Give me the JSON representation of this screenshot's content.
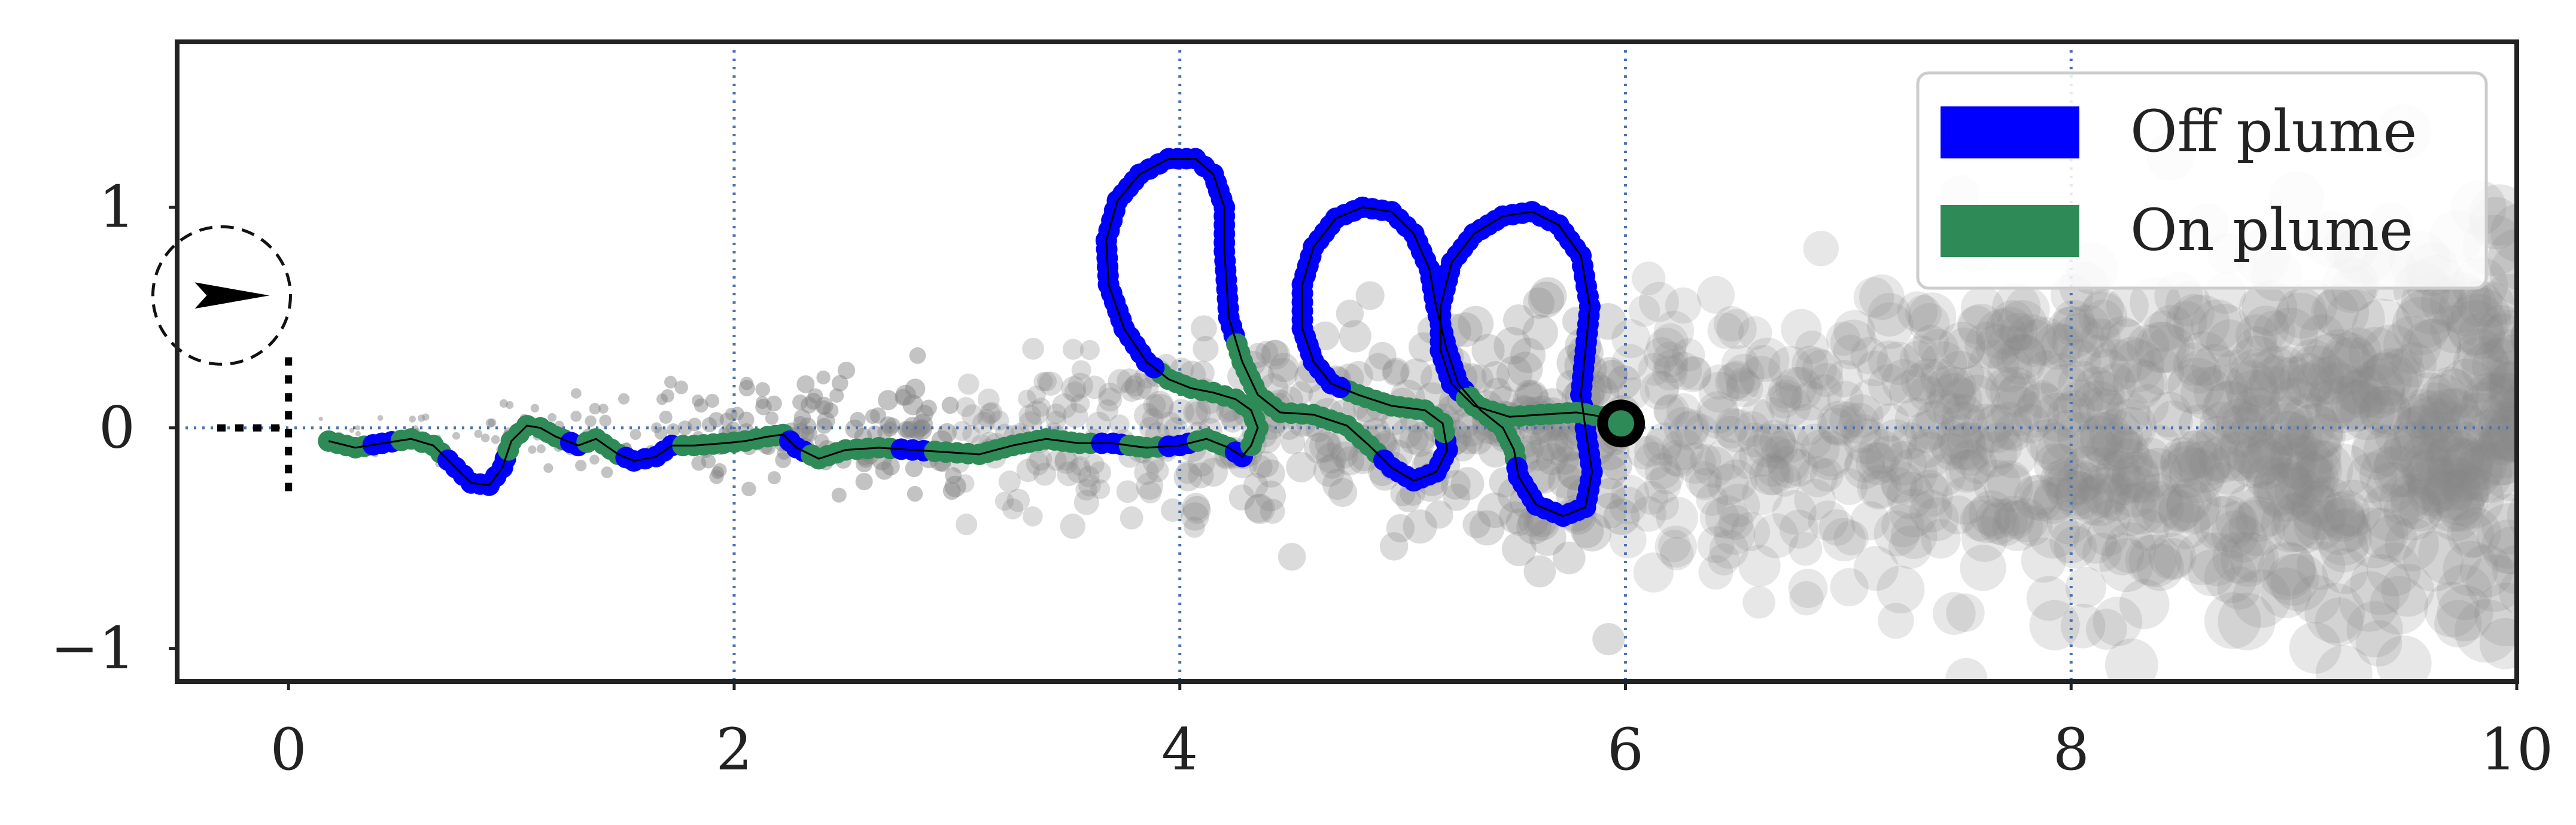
{
  "chart_data": {
    "type": "scatter",
    "title": "",
    "xlabel": "",
    "ylabel": "",
    "xlim": [
      -0.5,
      10.0
    ],
    "ylim": [
      -1.15,
      1.75
    ],
    "x_ticks": [
      0,
      2,
      4,
      6,
      8,
      10
    ],
    "x_tick_labels": [
      "0",
      "2",
      "4",
      "6",
      "8",
      "10"
    ],
    "y_ticks": [
      -1,
      0,
      1
    ],
    "y_tick_labels": [
      "−1",
      "0",
      "1"
    ],
    "grid": {
      "x": [
        2,
        4,
        6,
        8
      ],
      "y": [
        0
      ],
      "style": "dotted"
    },
    "legend": {
      "position": "top-right",
      "entries": [
        {
          "label": "Off plume",
          "color": "#0000ff"
        },
        {
          "label": "On plume",
          "color": "#2e8b57"
        }
      ]
    },
    "colors": {
      "off_plume": "#0000ff",
      "on_plume": "#2e8b57",
      "plume_puffs": "#888888",
      "grid": "#4c72b0",
      "frame": "#222222"
    },
    "agent_indicator": {
      "center": [
        -0.3,
        0.6
      ],
      "heading": "east",
      "scale_bar": "dotted L-shaped marker at x = 0"
    },
    "trajectory_end": [
      5.98,
      0.02
    ],
    "trajectory": [
      [
        0.18,
        -0.06,
        "on"
      ],
      [
        0.3,
        -0.09,
        "on"
      ],
      [
        0.42,
        -0.07,
        "off"
      ],
      [
        0.55,
        -0.05,
        "on"
      ],
      [
        0.65,
        -0.08,
        "on"
      ],
      [
        0.75,
        -0.18,
        "off"
      ],
      [
        0.82,
        -0.25,
        "off"
      ],
      [
        0.9,
        -0.26,
        "off"
      ],
      [
        0.96,
        -0.18,
        "off"
      ],
      [
        1.0,
        -0.06,
        "on"
      ],
      [
        1.07,
        0.01,
        "on"
      ],
      [
        1.13,
        0.0,
        "on"
      ],
      [
        1.2,
        -0.04,
        "on"
      ],
      [
        1.3,
        -0.08,
        "off"
      ],
      [
        1.38,
        -0.05,
        "on"
      ],
      [
        1.48,
        -0.12,
        "on"
      ],
      [
        1.55,
        -0.15,
        "off"
      ],
      [
        1.65,
        -0.13,
        "off"
      ],
      [
        1.72,
        -0.08,
        "off"
      ],
      [
        1.82,
        -0.08,
        "on"
      ],
      [
        1.95,
        -0.07,
        "on"
      ],
      [
        2.05,
        -0.06,
        "on"
      ],
      [
        2.15,
        -0.04,
        "on"
      ],
      [
        2.22,
        -0.03,
        "on"
      ],
      [
        2.28,
        -0.09,
        "off"
      ],
      [
        2.38,
        -0.14,
        "on"
      ],
      [
        2.5,
        -0.1,
        "on"
      ],
      [
        2.65,
        -0.09,
        "on"
      ],
      [
        2.8,
        -0.1,
        "off"
      ],
      [
        2.95,
        -0.11,
        "on"
      ],
      [
        3.1,
        -0.12,
        "on"
      ],
      [
        3.25,
        -0.08,
        "on"
      ],
      [
        3.4,
        -0.05,
        "on"
      ],
      [
        3.55,
        -0.07,
        "on"
      ],
      [
        3.7,
        -0.07,
        "off"
      ],
      [
        3.85,
        -0.09,
        "on"
      ],
      [
        4.0,
        -0.08,
        "off"
      ],
      [
        4.12,
        -0.05,
        "on"
      ],
      [
        4.22,
        -0.09,
        "on"
      ],
      [
        4.28,
        -0.13,
        "off"
      ],
      [
        4.32,
        -0.08,
        "on"
      ],
      [
        4.35,
        0.0,
        "on"
      ],
      [
        4.32,
        0.08,
        "on"
      ],
      [
        4.25,
        0.13,
        "on"
      ],
      [
        4.15,
        0.16,
        "on"
      ],
      [
        4.05,
        0.18,
        "on"
      ],
      [
        3.95,
        0.22,
        "on"
      ],
      [
        3.85,
        0.3,
        "off"
      ],
      [
        3.75,
        0.45,
        "off"
      ],
      [
        3.68,
        0.65,
        "off"
      ],
      [
        3.67,
        0.85,
        "off"
      ],
      [
        3.72,
        1.03,
        "off"
      ],
      [
        3.82,
        1.15,
        "off"
      ],
      [
        3.95,
        1.22,
        "off"
      ],
      [
        4.07,
        1.22,
        "off"
      ],
      [
        4.15,
        1.15,
        "off"
      ],
      [
        4.2,
        1.0,
        "off"
      ],
      [
        4.2,
        0.8,
        "off"
      ],
      [
        4.22,
        0.5,
        "off"
      ],
      [
        4.28,
        0.3,
        "on"
      ],
      [
        4.35,
        0.15,
        "on"
      ],
      [
        4.45,
        0.07,
        "on"
      ],
      [
        4.6,
        0.06,
        "on"
      ],
      [
        4.75,
        0.01,
        "on"
      ],
      [
        4.85,
        -0.08,
        "on"
      ],
      [
        4.95,
        -0.18,
        "off"
      ],
      [
        5.05,
        -0.24,
        "off"
      ],
      [
        5.15,
        -0.2,
        "off"
      ],
      [
        5.2,
        -0.1,
        "off"
      ],
      [
        5.18,
        0.02,
        "on"
      ],
      [
        5.1,
        0.08,
        "on"
      ],
      [
        4.95,
        0.1,
        "on"
      ],
      [
        4.8,
        0.15,
        "on"
      ],
      [
        4.68,
        0.2,
        "off"
      ],
      [
        4.6,
        0.3,
        "off"
      ],
      [
        4.55,
        0.45,
        "off"
      ],
      [
        4.55,
        0.65,
        "off"
      ],
      [
        4.6,
        0.82,
        "off"
      ],
      [
        4.7,
        0.95,
        "off"
      ],
      [
        4.82,
        1.0,
        "off"
      ],
      [
        4.95,
        0.98,
        "off"
      ],
      [
        5.05,
        0.88,
        "off"
      ],
      [
        5.12,
        0.72,
        "off"
      ],
      [
        5.15,
        0.55,
        "off"
      ],
      [
        5.2,
        0.35,
        "off"
      ],
      [
        5.25,
        0.2,
        "off"
      ],
      [
        5.35,
        0.08,
        "on"
      ],
      [
        5.45,
        0.0,
        "on"
      ],
      [
        5.5,
        -0.1,
        "on"
      ],
      [
        5.52,
        -0.22,
        "off"
      ],
      [
        5.6,
        -0.35,
        "off"
      ],
      [
        5.72,
        -0.4,
        "off"
      ],
      [
        5.82,
        -0.36,
        "off"
      ],
      [
        5.85,
        -0.2,
        "off"
      ],
      [
        5.82,
        0.0,
        "off"
      ],
      [
        5.8,
        0.15,
        "off"
      ],
      [
        5.82,
        0.35,
        "off"
      ],
      [
        5.84,
        0.55,
        "off"
      ],
      [
        5.8,
        0.78,
        "off"
      ],
      [
        5.7,
        0.92,
        "off"
      ],
      [
        5.58,
        0.98,
        "off"
      ],
      [
        5.45,
        0.96,
        "off"
      ],
      [
        5.32,
        0.88,
        "off"
      ],
      [
        5.22,
        0.75,
        "off"
      ],
      [
        5.17,
        0.55,
        "off"
      ],
      [
        5.17,
        0.35,
        "off"
      ],
      [
        5.22,
        0.2,
        "off"
      ],
      [
        5.32,
        0.1,
        "on"
      ],
      [
        5.48,
        0.05,
        "on"
      ],
      [
        5.62,
        0.06,
        "on"
      ],
      [
        5.78,
        0.07,
        "on"
      ],
      [
        5.9,
        0.05,
        "on"
      ],
      [
        5.98,
        0.02,
        "on"
      ]
    ]
  }
}
